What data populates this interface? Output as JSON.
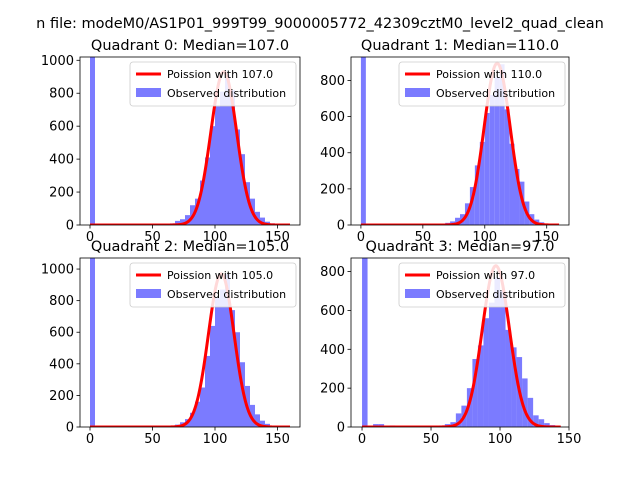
{
  "figure": {
    "suptitle": "n file: modeM0/AS1P01_999T99_9000005772_42309cztM0_level2_quad_clean"
  },
  "colors": {
    "hist": "#7b7bff",
    "curve": "#ff0000",
    "axis": "#000000",
    "legend_border": "#cccccc"
  },
  "chart_data": [
    {
      "type": "bar",
      "title": "Quadrant 0: Median=107.0",
      "xlim": [
        -8,
        168
      ],
      "ylim": [
        0,
        1020
      ],
      "xticks": [
        0,
        50,
        100,
        150
      ],
      "yticks": [
        0,
        200,
        400,
        600,
        800,
        1000
      ],
      "bin_width": 4,
      "bins": [
        {
          "x": 0,
          "y": 1020
        },
        {
          "x": 60,
          "y": 5
        },
        {
          "x": 64,
          "y": 10
        },
        {
          "x": 68,
          "y": 25
        },
        {
          "x": 72,
          "y": 35
        },
        {
          "x": 76,
          "y": 60
        },
        {
          "x": 80,
          "y": 120
        },
        {
          "x": 84,
          "y": 160
        },
        {
          "x": 88,
          "y": 270
        },
        {
          "x": 92,
          "y": 410
        },
        {
          "x": 96,
          "y": 600
        },
        {
          "x": 100,
          "y": 720
        },
        {
          "x": 104,
          "y": 810
        },
        {
          "x": 108,
          "y": 910
        },
        {
          "x": 112,
          "y": 820
        },
        {
          "x": 116,
          "y": 580
        },
        {
          "x": 120,
          "y": 430
        },
        {
          "x": 124,
          "y": 260
        },
        {
          "x": 128,
          "y": 160
        },
        {
          "x": 132,
          "y": 80
        },
        {
          "x": 136,
          "y": 45
        },
        {
          "x": 140,
          "y": 20
        },
        {
          "x": 144,
          "y": 10
        },
        {
          "x": 148,
          "y": 5
        }
      ],
      "curve": {
        "amplitude": 930,
        "mean": 107,
        "sd": 10.34,
        "x_range": [
          0,
          160
        ]
      },
      "legend": {
        "curve_label": "Poission with 107.0",
        "hist_label": "Observed distribution",
        "position": "upper right"
      }
    },
    {
      "type": "bar",
      "title": "Quadrant 1: Median=110.0",
      "xlim": [
        -8,
        168
      ],
      "ylim": [
        0,
        930
      ],
      "xticks": [
        0,
        50,
        100,
        150
      ],
      "yticks": [
        0,
        200,
        400,
        600,
        800
      ],
      "bin_width": 4,
      "bins": [
        {
          "x": 0,
          "y": 930
        },
        {
          "x": 64,
          "y": 5
        },
        {
          "x": 68,
          "y": 12
        },
        {
          "x": 72,
          "y": 20
        },
        {
          "x": 76,
          "y": 40
        },
        {
          "x": 80,
          "y": 60
        },
        {
          "x": 84,
          "y": 120
        },
        {
          "x": 88,
          "y": 210
        },
        {
          "x": 92,
          "y": 330
        },
        {
          "x": 96,
          "y": 460
        },
        {
          "x": 100,
          "y": 620
        },
        {
          "x": 104,
          "y": 720
        },
        {
          "x": 108,
          "y": 820
        },
        {
          "x": 112,
          "y": 890
        },
        {
          "x": 116,
          "y": 640
        },
        {
          "x": 120,
          "y": 450
        },
        {
          "x": 124,
          "y": 310
        },
        {
          "x": 128,
          "y": 240
        },
        {
          "x": 132,
          "y": 130
        },
        {
          "x": 136,
          "y": 60
        },
        {
          "x": 140,
          "y": 30
        },
        {
          "x": 144,
          "y": 15
        },
        {
          "x": 148,
          "y": 8
        },
        {
          "x": 152,
          "y": 4
        }
      ],
      "curve": {
        "amplitude": 895,
        "mean": 110,
        "sd": 10.49,
        "x_range": [
          0,
          160
        ]
      },
      "legend": {
        "curve_label": "Poission with 110.0",
        "hist_label": "Observed distribution",
        "position": "upper right"
      }
    },
    {
      "type": "bar",
      "title": "Quadrant 2: Median=105.0",
      "xlim": [
        -8,
        168
      ],
      "ylim": [
        0,
        1070
      ],
      "xticks": [
        0,
        50,
        100,
        150
      ],
      "yticks": [
        0,
        200,
        400,
        600,
        800,
        1000
      ],
      "bin_width": 4,
      "bins": [
        {
          "x": 0,
          "y": 1070
        },
        {
          "x": 64,
          "y": 8
        },
        {
          "x": 68,
          "y": 15
        },
        {
          "x": 72,
          "y": 30
        },
        {
          "x": 76,
          "y": 50
        },
        {
          "x": 80,
          "y": 90
        },
        {
          "x": 84,
          "y": 160
        },
        {
          "x": 88,
          "y": 250
        },
        {
          "x": 92,
          "y": 450
        },
        {
          "x": 96,
          "y": 640
        },
        {
          "x": 100,
          "y": 820
        },
        {
          "x": 104,
          "y": 870
        },
        {
          "x": 108,
          "y": 970
        },
        {
          "x": 112,
          "y": 740
        },
        {
          "x": 116,
          "y": 600
        },
        {
          "x": 120,
          "y": 410
        },
        {
          "x": 124,
          "y": 260
        },
        {
          "x": 128,
          "y": 140
        },
        {
          "x": 132,
          "y": 80
        },
        {
          "x": 136,
          "y": 40
        },
        {
          "x": 140,
          "y": 20
        },
        {
          "x": 144,
          "y": 8
        },
        {
          "x": 148,
          "y": 4
        }
      ],
      "curve": {
        "amplitude": 970,
        "mean": 105,
        "sd": 10.25,
        "x_range": [
          0,
          160
        ]
      },
      "legend": {
        "curve_label": "Poission with 105.0",
        "hist_label": "Observed distribution",
        "position": "upper right"
      }
    },
    {
      "type": "bar",
      "title": "Quadrant 3: Median=97.0",
      "xlim": [
        -8,
        150
      ],
      "ylim": [
        0,
        870
      ],
      "xticks": [
        0,
        50,
        100,
        150
      ],
      "yticks": [
        0,
        200,
        400,
        600,
        800
      ],
      "bin_width": 4,
      "bins": [
        {
          "x": 0,
          "y": 870
        },
        {
          "x": 8,
          "y": 15
        },
        {
          "x": 12,
          "y": 15
        },
        {
          "x": 20,
          "y": 8
        },
        {
          "x": 28,
          "y": 5
        },
        {
          "x": 36,
          "y": 5
        },
        {
          "x": 44,
          "y": 5
        },
        {
          "x": 48,
          "y": 5
        },
        {
          "x": 56,
          "y": 8
        },
        {
          "x": 60,
          "y": 15
        },
        {
          "x": 64,
          "y": 25
        },
        {
          "x": 68,
          "y": 70
        },
        {
          "x": 72,
          "y": 110
        },
        {
          "x": 76,
          "y": 200
        },
        {
          "x": 80,
          "y": 350
        },
        {
          "x": 84,
          "y": 420
        },
        {
          "x": 88,
          "y": 560
        },
        {
          "x": 92,
          "y": 640
        },
        {
          "x": 96,
          "y": 770
        },
        {
          "x": 100,
          "y": 700
        },
        {
          "x": 104,
          "y": 500
        },
        {
          "x": 108,
          "y": 410
        },
        {
          "x": 112,
          "y": 360
        },
        {
          "x": 116,
          "y": 250
        },
        {
          "x": 120,
          "y": 150
        },
        {
          "x": 124,
          "y": 60
        },
        {
          "x": 128,
          "y": 40
        },
        {
          "x": 132,
          "y": 20
        },
        {
          "x": 136,
          "y": 10
        },
        {
          "x": 140,
          "y": 5
        }
      ],
      "curve": {
        "amplitude": 830,
        "mean": 97,
        "sd": 9.85,
        "x_range": [
          0,
          144
        ]
      },
      "legend": {
        "curve_label": "Poission with 97.0",
        "hist_label": "Observed distribution",
        "position": "upper right"
      }
    }
  ]
}
